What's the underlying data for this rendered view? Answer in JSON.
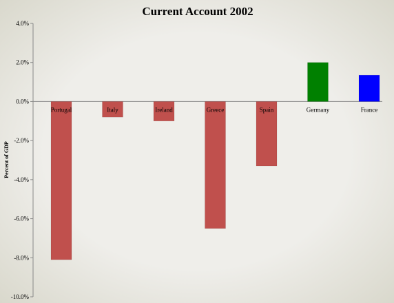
{
  "chart_data": {
    "type": "bar",
    "title": "Current Account 2002",
    "ylabel": "Percent of GDP",
    "xlabel": "",
    "categories": [
      "Portugal",
      "Italy",
      "Ireland",
      "Greece",
      "Spain",
      "Germany",
      "France"
    ],
    "values": [
      -8.1,
      -0.8,
      -1.0,
      -6.5,
      -3.3,
      2.0,
      1.35
    ],
    "colors": [
      "#c0504d",
      "#c0504d",
      "#c0504d",
      "#c0504d",
      "#c0504d",
      "#008000",
      "#0000ff"
    ],
    "ylim": [
      -10,
      4
    ],
    "yticks": [
      4,
      2,
      0,
      -2,
      -4,
      -6,
      -8,
      -10
    ],
    "ytick_labels": [
      "4.0%",
      "2.0%",
      "0.0%",
      "-2.0%",
      "-4.0%",
      "-6.0%",
      "-8.0%",
      "-10.0%"
    ],
    "grid": false,
    "legend": "none"
  }
}
